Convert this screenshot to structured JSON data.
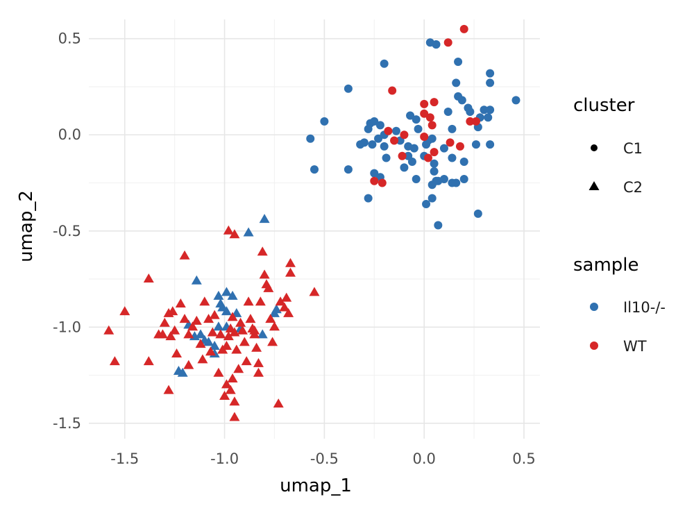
{
  "colors": {
    "Il10-/-": "#3071b0",
    "WT": "#d62728",
    "grid_major": "#e6e6e6",
    "grid_minor": "#f2f2f2",
    "legend_key": "#000000"
  },
  "chart_data": {
    "type": "scatter",
    "title": "",
    "xlabel": "umap_1",
    "ylabel": "umap_2",
    "xlim": [
      -1.68,
      0.58
    ],
    "ylim": [
      -1.58,
      0.6
    ],
    "xticks": [
      -1.5,
      -1.0,
      -0.5,
      0.0,
      0.5
    ],
    "yticks": [
      -1.5,
      -1.0,
      -0.5,
      0.0,
      0.5
    ],
    "xtick_labels": [
      "-1.5",
      "-1.0",
      "-0.5",
      "0.0",
      "0.5"
    ],
    "ytick_labels": [
      "-1.5",
      "-1.0",
      "-0.5",
      "0.0",
      "0.5"
    ],
    "grid": true,
    "legend_position": "right",
    "legends": [
      {
        "title": "cluster",
        "entries": [
          {
            "label": "C1",
            "shape": "circle"
          },
          {
            "label": "C2",
            "shape": "triangle"
          }
        ]
      },
      {
        "title": "sample",
        "entries": [
          {
            "label": "Il10-/-",
            "color_key": "Il10-/-"
          },
          {
            "label": "WT",
            "color_key": "WT"
          }
        ]
      }
    ],
    "series": [
      {
        "cluster": "C1",
        "sample": "Il10-/-",
        "shape": "circle",
        "color_key": "Il10-/-",
        "points": [
          [
            0.03,
            0.48
          ],
          [
            0.06,
            0.47
          ],
          [
            -0.2,
            0.37
          ],
          [
            0.17,
            0.38
          ],
          [
            0.33,
            0.32
          ],
          [
            -0.38,
            0.24
          ],
          [
            0.16,
            0.27
          ],
          [
            0.33,
            0.27
          ],
          [
            0.17,
            0.2
          ],
          [
            0.19,
            0.18
          ],
          [
            -0.5,
            0.07
          ],
          [
            -0.57,
            -0.02
          ],
          [
            -0.55,
            -0.18
          ],
          [
            -0.38,
            -0.18
          ],
          [
            -0.27,
            0.06
          ],
          [
            -0.25,
            0.07
          ],
          [
            -0.22,
            0.05
          ],
          [
            -0.2,
            0.0
          ],
          [
            -0.28,
            0.03
          ],
          [
            -0.3,
            -0.04
          ],
          [
            -0.32,
            -0.05
          ],
          [
            -0.26,
            -0.05
          ],
          [
            -0.23,
            -0.02
          ],
          [
            -0.25,
            -0.2
          ],
          [
            -0.22,
            -0.22
          ],
          [
            -0.28,
            -0.33
          ],
          [
            -0.19,
            -0.12
          ],
          [
            -0.2,
            -0.06
          ],
          [
            -0.14,
            0.02
          ],
          [
            -0.07,
            0.1
          ],
          [
            -0.04,
            0.08
          ],
          [
            -0.03,
            0.03
          ],
          [
            -0.12,
            -0.03
          ],
          [
            -0.08,
            -0.06
          ],
          [
            -0.05,
            -0.07
          ],
          [
            -0.08,
            -0.11
          ],
          [
            -0.1,
            -0.17
          ],
          [
            -0.06,
            -0.14
          ],
          [
            -0.04,
            -0.23
          ],
          [
            0.01,
            -0.05
          ],
          [
            0.02,
            -0.03
          ],
          [
            0.04,
            -0.02
          ],
          [
            0.0,
            -0.11
          ],
          [
            0.05,
            -0.15
          ],
          [
            0.05,
            -0.19
          ],
          [
            0.06,
            -0.24
          ],
          [
            0.04,
            -0.26
          ],
          [
            0.07,
            -0.24
          ],
          [
            0.1,
            -0.23
          ],
          [
            0.01,
            -0.36
          ],
          [
            0.04,
            -0.33
          ],
          [
            0.07,
            -0.47
          ],
          [
            0.12,
            0.12
          ],
          [
            0.14,
            0.03
          ],
          [
            0.1,
            -0.07
          ],
          [
            0.14,
            -0.12
          ],
          [
            0.16,
            -0.25
          ],
          [
            0.23,
            0.12
          ],
          [
            0.22,
            0.14
          ],
          [
            0.27,
            0.04
          ],
          [
            0.28,
            0.09
          ],
          [
            0.3,
            0.13
          ],
          [
            0.32,
            0.09
          ],
          [
            0.33,
            0.13
          ],
          [
            0.26,
            -0.05
          ],
          [
            0.33,
            -0.05
          ],
          [
            0.46,
            0.18
          ],
          [
            0.2,
            -0.14
          ],
          [
            0.2,
            -0.23
          ],
          [
            0.27,
            -0.41
          ],
          [
            0.06,
            0.47
          ],
          [
            0.14,
            -0.25
          ]
        ]
      },
      {
        "cluster": "C1",
        "sample": "WT",
        "shape": "circle",
        "color_key": "WT",
        "points": [
          [
            0.2,
            0.55
          ],
          [
            0.12,
            0.48
          ],
          [
            -0.16,
            0.23
          ],
          [
            0.0,
            0.16
          ],
          [
            0.05,
            0.17
          ],
          [
            0.0,
            0.11
          ],
          [
            0.03,
            0.09
          ],
          [
            -0.18,
            0.02
          ],
          [
            0.04,
            0.05
          ],
          [
            -0.15,
            -0.03
          ],
          [
            -0.1,
            0.0
          ],
          [
            0.0,
            -0.01
          ],
          [
            0.13,
            -0.04
          ],
          [
            -0.11,
            -0.11
          ],
          [
            0.05,
            -0.09
          ],
          [
            0.02,
            -0.12
          ],
          [
            0.18,
            -0.06
          ],
          [
            0.23,
            0.07
          ],
          [
            -0.25,
            -0.24
          ],
          [
            -0.21,
            -0.25
          ],
          [
            0.26,
            0.07
          ]
        ]
      },
      {
        "cluster": "C2",
        "sample": "Il10-/-",
        "shape": "triangle",
        "color_key": "Il10-/-",
        "points": [
          [
            -0.8,
            -0.44
          ],
          [
            -0.88,
            -0.51
          ],
          [
            -1.14,
            -0.76
          ],
          [
            -1.03,
            -0.84
          ],
          [
            -0.99,
            -0.82
          ],
          [
            -0.96,
            -0.84
          ],
          [
            -1.02,
            -0.88
          ],
          [
            -1.01,
            -0.9
          ],
          [
            -0.99,
            -0.92
          ],
          [
            -0.94,
            -0.93
          ],
          [
            -1.03,
            -1.0
          ],
          [
            -0.99,
            -1.0
          ],
          [
            -1.12,
            -1.04
          ],
          [
            -1.15,
            -1.05
          ],
          [
            -1.18,
            -0.99
          ],
          [
            -1.1,
            -1.07
          ],
          [
            -1.08,
            -1.08
          ],
          [
            -1.05,
            -1.1
          ],
          [
            -0.92,
            -1.01
          ],
          [
            -0.81,
            -1.04
          ],
          [
            -1.05,
            -1.14
          ],
          [
            -1.23,
            -1.23
          ],
          [
            -1.21,
            -1.24
          ],
          [
            -0.75,
            -0.93
          ],
          [
            -0.74,
            -0.91
          ]
        ]
      },
      {
        "cluster": "C2",
        "sample": "WT",
        "shape": "triangle",
        "color_key": "WT",
        "points": [
          [
            -1.58,
            -1.02
          ],
          [
            -1.55,
            -1.18
          ],
          [
            -1.5,
            -0.92
          ],
          [
            -1.38,
            -0.75
          ],
          [
            -1.38,
            -1.18
          ],
          [
            -1.33,
            -1.04
          ],
          [
            -1.31,
            -1.04
          ],
          [
            -1.3,
            -0.98
          ],
          [
            -1.28,
            -0.93
          ],
          [
            -1.27,
            -1.05
          ],
          [
            -1.28,
            -1.33
          ],
          [
            -1.26,
            -0.92
          ],
          [
            -1.25,
            -1.02
          ],
          [
            -1.24,
            -1.14
          ],
          [
            -1.22,
            -0.88
          ],
          [
            -1.2,
            -0.63
          ],
          [
            -1.2,
            -0.96
          ],
          [
            -1.18,
            -1.04
          ],
          [
            -1.18,
            -1.2
          ],
          [
            -1.16,
            -1.0
          ],
          [
            -1.14,
            -0.97
          ],
          [
            -1.12,
            -1.09
          ],
          [
            -1.11,
            -1.17
          ],
          [
            -1.1,
            -0.87
          ],
          [
            -1.08,
            -0.96
          ],
          [
            -1.07,
            -1.13
          ],
          [
            -1.06,
            -1.03
          ],
          [
            -1.05,
            -0.94
          ],
          [
            -1.03,
            -1.24
          ],
          [
            -1.02,
            -1.04
          ],
          [
            -1.01,
            -1.12
          ],
          [
            -0.99,
            -1.1
          ],
          [
            -0.98,
            -0.5
          ],
          [
            -0.98,
            -1.05
          ],
          [
            -0.97,
            -1.01
          ],
          [
            -0.96,
            -0.95
          ],
          [
            -0.96,
            -1.27
          ],
          [
            -0.95,
            -0.52
          ],
          [
            -0.95,
            -1.03
          ],
          [
            -0.94,
            -1.12
          ],
          [
            -0.93,
            -1.22
          ],
          [
            -0.92,
            -0.98
          ],
          [
            -0.91,
            -1.02
          ],
          [
            -0.9,
            -1.08
          ],
          [
            -0.89,
            -1.18
          ],
          [
            -0.88,
            -0.87
          ],
          [
            -0.87,
            -0.96
          ],
          [
            -0.86,
            -1.01
          ],
          [
            -0.85,
            -1.04
          ],
          [
            -0.84,
            -1.11
          ],
          [
            -0.83,
            -1.24
          ],
          [
            -0.82,
            -0.87
          ],
          [
            -0.81,
            -0.61
          ],
          [
            -0.8,
            -0.73
          ],
          [
            -0.79,
            -0.78
          ],
          [
            -0.78,
            -0.8
          ],
          [
            -0.77,
            -0.96
          ],
          [
            -0.76,
            -1.08
          ],
          [
            -0.75,
            -1.0
          ],
          [
            -0.73,
            -1.4
          ],
          [
            -0.72,
            -0.87
          ],
          [
            -0.7,
            -0.9
          ],
          [
            -0.69,
            -0.85
          ],
          [
            -0.68,
            -0.93
          ],
          [
            -0.67,
            -0.67
          ],
          [
            -0.67,
            -0.72
          ],
          [
            -0.55,
            -0.82
          ],
          [
            -0.97,
            -1.33
          ],
          [
            -1.0,
            -1.36
          ],
          [
            -0.95,
            -1.47
          ],
          [
            -0.99,
            -1.3
          ],
          [
            -0.85,
            -1.02
          ],
          [
            -0.83,
            -1.19
          ],
          [
            -0.95,
            -1.39
          ]
        ]
      }
    ]
  }
}
